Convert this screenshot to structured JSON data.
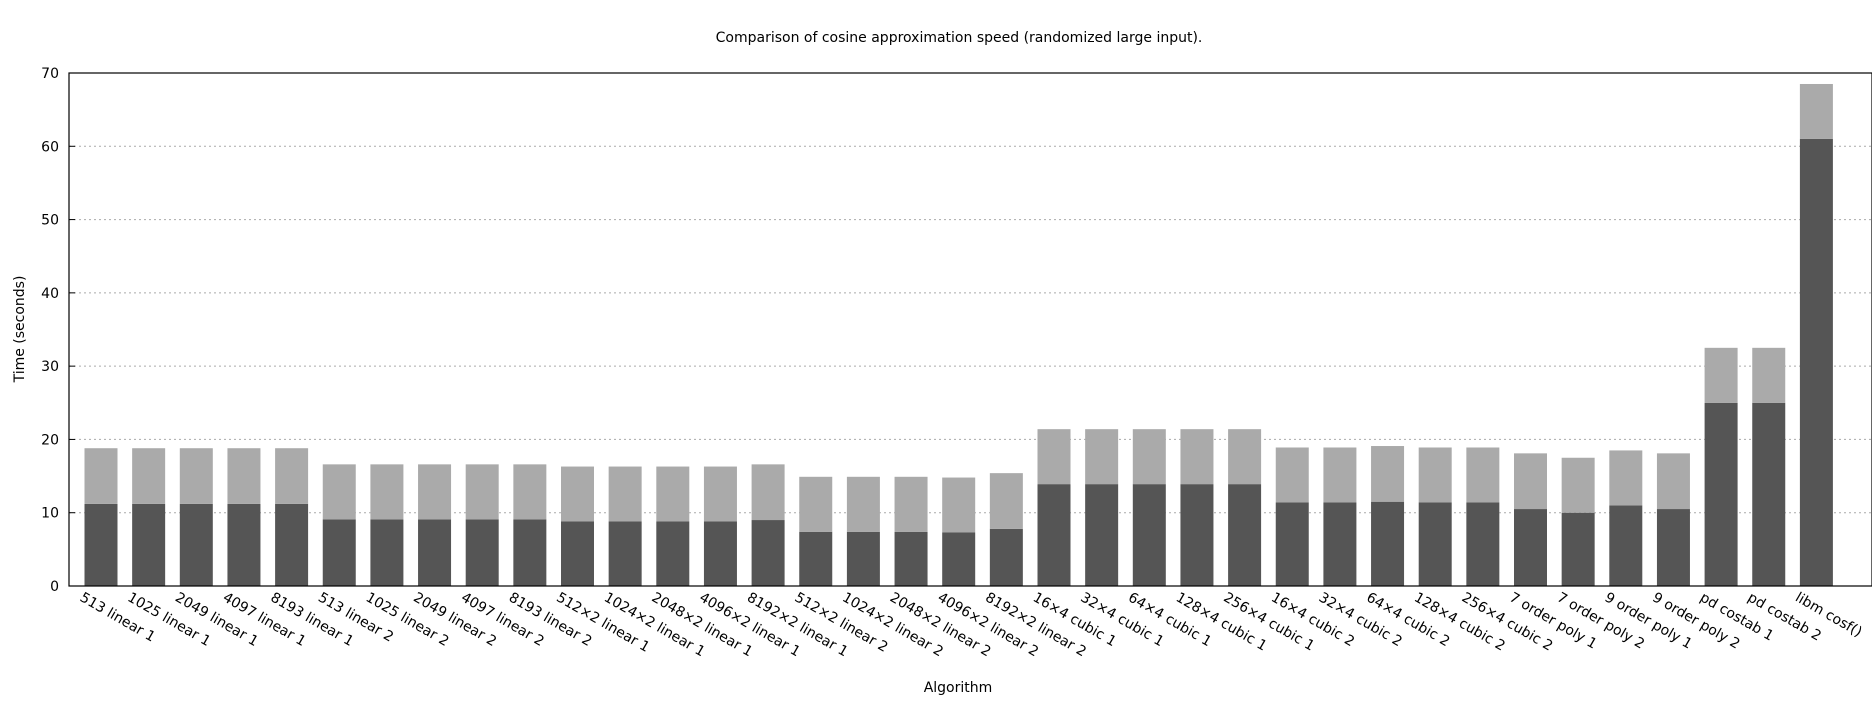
{
  "chart_data": {
    "type": "bar",
    "stacked": true,
    "title": "Comparison of cosine approximation speed (randomized large input).",
    "xlabel": "Algorithm",
    "ylabel": "Time (seconds)",
    "ylim": [
      0,
      70
    ],
    "yticks": [
      "0",
      "10",
      "20",
      "30",
      "40",
      "50",
      "60",
      "70"
    ],
    "grid": true,
    "categories": [
      "513 linear 1",
      "1025 linear 1",
      "2049 linear 1",
      "4097 linear 1",
      "8193 linear 1",
      "513 linear 2",
      "1025 linear 2",
      "2049 linear 2",
      "4097 linear 2",
      "8193 linear 2",
      "512×2 linear 1",
      "1024×2 linear 1",
      "2048×2 linear 1",
      "4096×2 linear 1",
      "8192×2 linear 1",
      "512×2 linear 2",
      "1024×2 linear 2",
      "2048×2 linear 2",
      "4096×2 linear 2",
      "8192×2 linear 2",
      "16×4 cubic 1",
      "32×4 cubic 1",
      "64×4 cubic 1",
      "128×4 cubic 1",
      "256×4 cubic 1",
      "16×4 cubic 2",
      "32×4 cubic 2",
      "64×4 cubic 2",
      "128×4 cubic 2",
      "256×4 cubic 2",
      "7 order poly 1",
      "7 order poly 2",
      "9 order poly 1",
      "9 order poly 2",
      "pd costab 1",
      "pd costab 2",
      "libm cosf()"
    ],
    "series": [
      {
        "color": "#555555",
        "values": [
          11.2,
          11.2,
          11.2,
          11.2,
          11.2,
          9.1,
          9.1,
          9.1,
          9.1,
          9.1,
          8.8,
          8.8,
          8.8,
          8.8,
          9.0,
          7.4,
          7.4,
          7.4,
          7.3,
          7.8,
          13.9,
          13.9,
          13.9,
          13.9,
          13.9,
          11.4,
          11.4,
          11.5,
          11.4,
          11.4,
          10.5,
          10.0,
          11.0,
          10.5,
          25.0,
          25.0,
          61.0
        ]
      },
      {
        "color": "#aaaaaa",
        "values": [
          7.6,
          7.6,
          7.6,
          7.6,
          7.6,
          7.5,
          7.5,
          7.5,
          7.5,
          7.5,
          7.5,
          7.5,
          7.5,
          7.5,
          7.6,
          7.5,
          7.5,
          7.5,
          7.5,
          7.6,
          7.5,
          7.5,
          7.5,
          7.5,
          7.5,
          7.5,
          7.5,
          7.6,
          7.5,
          7.5,
          7.6,
          7.5,
          7.5,
          7.6,
          7.5,
          7.5,
          7.5
        ]
      }
    ]
  }
}
